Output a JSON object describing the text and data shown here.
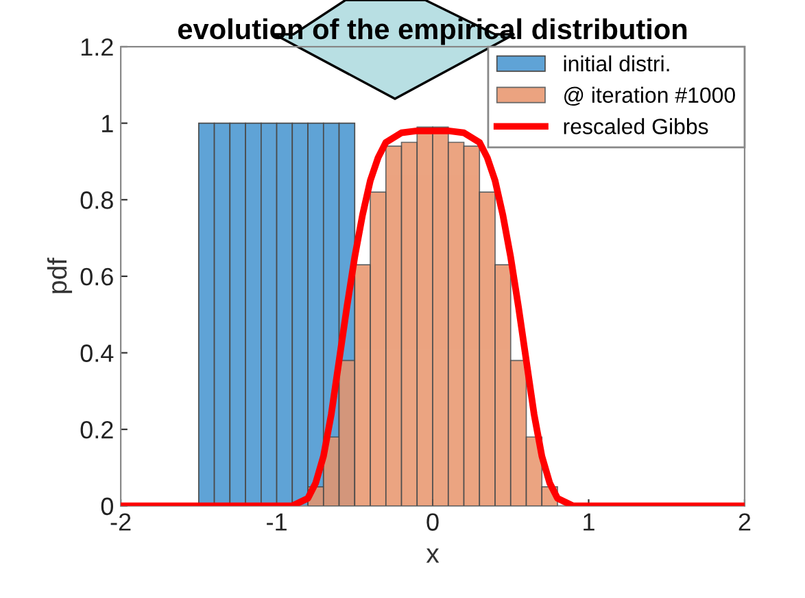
{
  "chart_data": {
    "type": "histogram",
    "title": "evolution of the empirical distribution",
    "xlabel": "x",
    "ylabel": "pdf",
    "xlim": [
      -2,
      2
    ],
    "xticks": [
      -2,
      -1,
      0,
      1,
      2
    ],
    "ylim": [
      0,
      1.2
    ],
    "yticks": [
      0,
      0.2,
      0.4,
      0.6,
      0.8,
      1,
      1.2
    ],
    "legend": "top right",
    "grid": false,
    "series": [
      {
        "name": "initial distri.",
        "color": "#5fa3d6",
        "bins": [
          -1.5,
          -1.4,
          -1.3,
          -1.2,
          -1.1,
          -1.0,
          -0.9,
          -0.8,
          -0.7,
          -0.6,
          -0.5
        ],
        "values": [
          1,
          1,
          1,
          1,
          1,
          1,
          1,
          1,
          1,
          1
        ]
      },
      {
        "name": "@ iteration #1000",
        "color": "#e8946b",
        "bins": [
          -0.8,
          -0.7,
          -0.6,
          -0.5,
          -0.4,
          -0.3,
          -0.2,
          -0.1,
          0,
          0.1,
          0.2,
          0.3,
          0.4,
          0.5,
          0.6,
          0.7,
          0.8
        ],
        "values": [
          0.05,
          0.18,
          0.38,
          0.63,
          0.82,
          0.94,
          0.95,
          0.99,
          0.99,
          0.95,
          0.94,
          0.82,
          0.63,
          0.38,
          0.18,
          0.05
        ]
      },
      {
        "name": "rescaled Gibbs",
        "type": "line",
        "color": "#ff0000",
        "x": [
          -2,
          -0.9,
          -0.8,
          -0.75,
          -0.7,
          -0.65,
          -0.6,
          -0.55,
          -0.5,
          -0.45,
          -0.4,
          -0.35,
          -0.3,
          -0.2,
          -0.1,
          0,
          0.1,
          0.2,
          0.3,
          0.35,
          0.4,
          0.45,
          0.5,
          0.55,
          0.6,
          0.65,
          0.7,
          0.75,
          0.8,
          0.9,
          2
        ],
        "values": [
          0,
          0,
          0.02,
          0.06,
          0.13,
          0.24,
          0.38,
          0.52,
          0.65,
          0.76,
          0.85,
          0.91,
          0.95,
          0.975,
          0.98,
          0.98,
          0.98,
          0.975,
          0.95,
          0.91,
          0.85,
          0.76,
          0.65,
          0.52,
          0.38,
          0.24,
          0.13,
          0.06,
          0.02,
          0,
          0
        ]
      }
    ]
  }
}
